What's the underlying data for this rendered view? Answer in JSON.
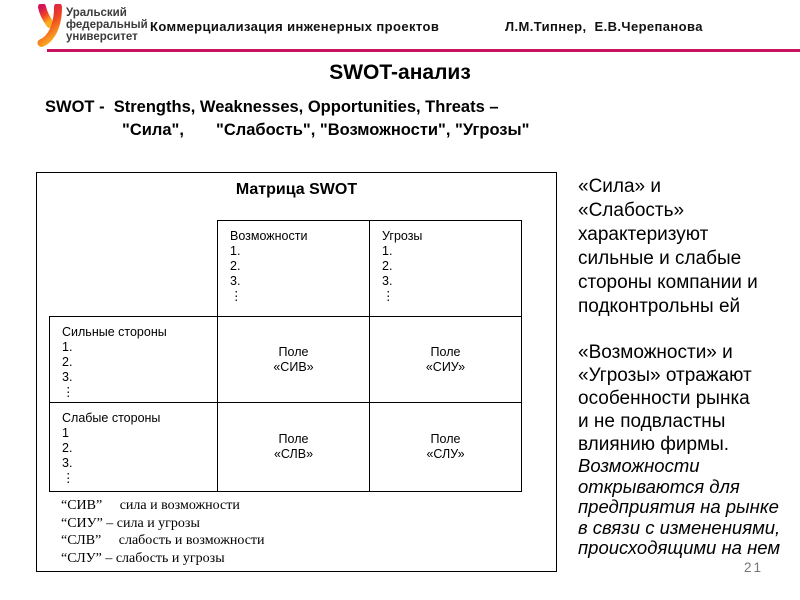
{
  "header": {
    "logo_lines": [
      "Уральский",
      "федеральный",
      "университет"
    ],
    "course_title": "Коммерциализация инженерных проектов",
    "authors": "Л.М.Типнер,  Е.В.Черепанова",
    "accent_color": "#c81460",
    "logo_gradient_top": "#d4145a",
    "logo_gradient_mid": "#ee4323",
    "logo_gradient_bottom": "#fbab1e"
  },
  "slide": {
    "title": "SWOT-анализ",
    "subtitle_line1": "SWOT -  Strengths, Weaknesses, Opportunities, Threats –",
    "subtitle_line2": "\"Сила\",       \"Слабость\", \"Возможности\", \"Угрозы\"",
    "page_number": "21"
  },
  "matrix": {
    "title": "Матрица SWOT",
    "cells": {
      "opportunities": {
        "title": "Возможности",
        "items": [
          "1.",
          "2.",
          "3.",
          "⋮"
        ]
      },
      "threats": {
        "title": "Угрозы",
        "items": [
          "1.",
          "2.",
          "3.",
          "⋮"
        ]
      },
      "strengths": {
        "title": "Сильные стороны",
        "items": [
          "1.",
          "2.",
          "3.",
          "⋮"
        ]
      },
      "weaknesses": {
        "title": "Слабые стороны",
        "items": [
          "1",
          "2.",
          "3.",
          "⋮"
        ]
      },
      "field_siv": {
        "lines": [
          "Поле",
          "«СИВ»"
        ]
      },
      "field_siu": {
        "lines": [
          "Поле",
          "«СИУ»"
        ]
      },
      "field_slv": {
        "lines": [
          "Поле",
          "«СЛВ»"
        ]
      },
      "field_slu": {
        "lines": [
          "Поле",
          "«СЛУ»"
        ]
      }
    },
    "legend_lines": [
      "“СИВ”     сила и возможности",
      "“СИУ” – сила и угрозы",
      "“СЛВ”     слабость и возможности",
      "“СЛУ” – слабость и угрозы"
    ]
  },
  "explanation": {
    "para1_lines": [
      "«Сила» и",
      "«Слабость»",
      "характеризуют",
      "сильные и слабые",
      "стороны компании и",
      "подконтрольны ей"
    ],
    "para2_lines": [
      "«Возможности» и",
      "«Угрозы» отражают",
      "особенности рынка",
      "и не подвластны",
      "влиянию фирмы."
    ],
    "para2_italic_lines": [
      "Возможности",
      "открываются для",
      "предприятия на рынке",
      "в связи с изменениями,",
      "происходящими на нем"
    ]
  }
}
